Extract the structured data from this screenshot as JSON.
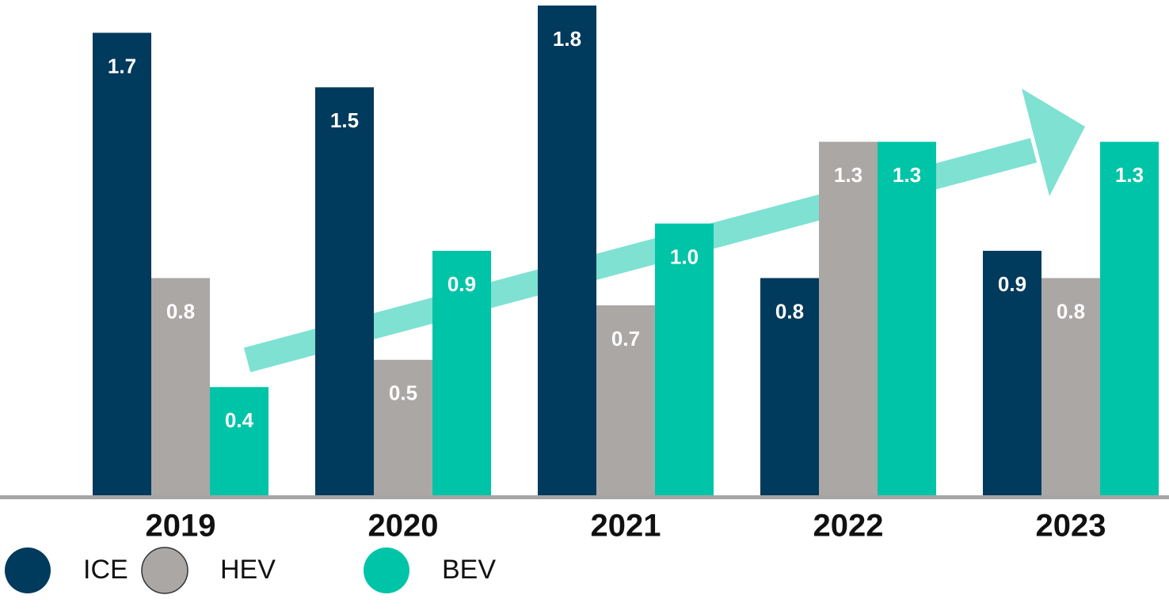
{
  "chart_data": {
    "type": "bar",
    "categories": [
      "2019",
      "2020",
      "2021",
      "2022",
      "2023"
    ],
    "series": [
      {
        "name": "ICE",
        "color": "#003a5c",
        "values": [
          1.7,
          1.5,
          1.8,
          0.8,
          0.9
        ]
      },
      {
        "name": "HEV",
        "color": "#aba7a5",
        "values": [
          0.8,
          0.5,
          0.7,
          1.3,
          0.8
        ]
      },
      {
        "name": "BEV",
        "color": "#00c4a7",
        "values": [
          0.4,
          0.9,
          1.0,
          1.3,
          1.3
        ]
      }
    ],
    "value_labels": [
      [
        "1.7",
        "1.5",
        "1.8",
        "0.8",
        "0.9"
      ],
      [
        "0.8",
        "0.5",
        "0.7",
        "1.3",
        "0.8"
      ],
      [
        "0.4",
        "0.9",
        "1.0",
        "1.3",
        "1.3"
      ]
    ],
    "ylim": [
      0,
      1.8
    ],
    "grid": false,
    "legend": "bottom-left"
  }
}
